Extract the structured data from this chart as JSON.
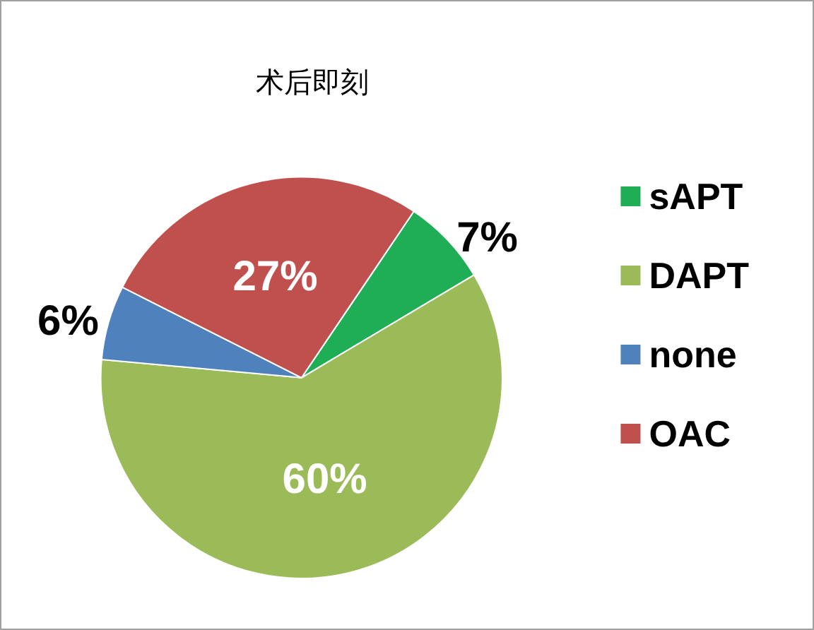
{
  "chart_data": {
    "type": "pie",
    "title": "术后即刻",
    "categories": [
      "sAPT",
      "DAPT",
      "none",
      "OAC"
    ],
    "values": [
      7,
      60,
      6,
      27
    ],
    "colors": [
      "#1fae55",
      "#9bbb59",
      "#4f81bd",
      "#c0504d"
    ],
    "value_labels": [
      "7%",
      "60%",
      "6%",
      "27%"
    ],
    "legend": "right"
  }
}
